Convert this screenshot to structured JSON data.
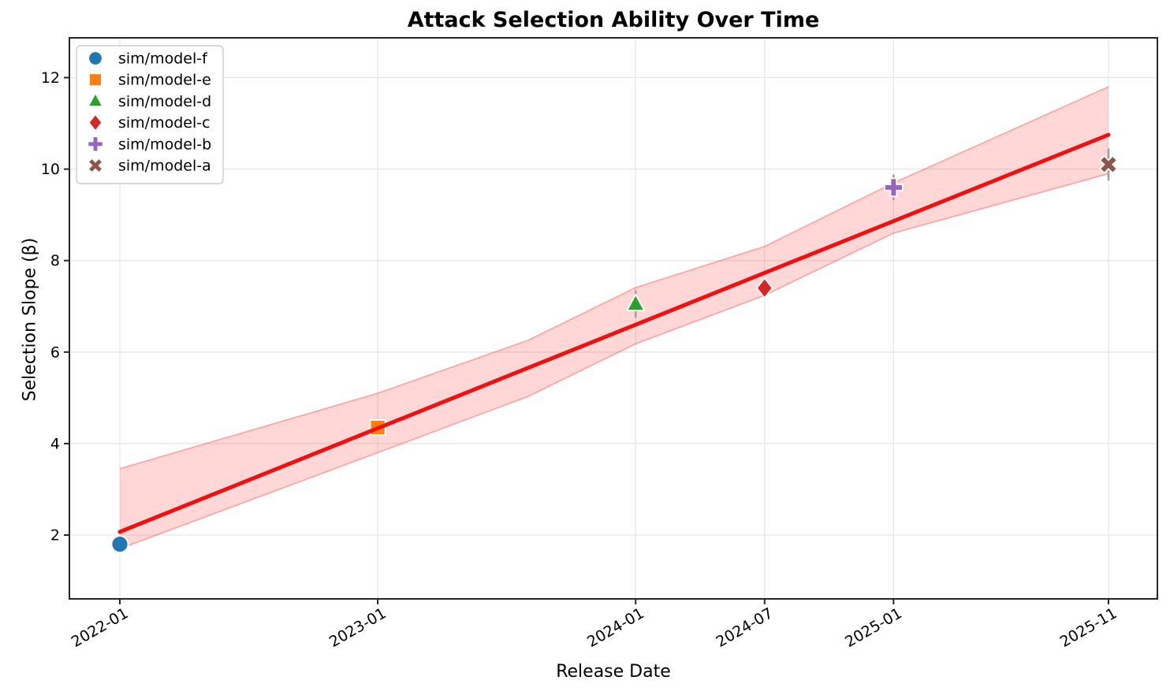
{
  "title": "Attack Selection Ability Over Time",
  "axes": {
    "x_label": "Release Date",
    "y_label": "Selection Slope (β)"
  },
  "chart_data": {
    "type": "scatter",
    "title": "Attack Selection Ability Over Time",
    "xlabel": "Release Date",
    "ylabel": "Selection Slope (β)",
    "x_tick_labels": [
      "2022-01",
      "2023-01",
      "2024-01",
      "2024-07",
      "2025-01",
      "2025-11"
    ],
    "y_tick_labels": [
      2,
      4,
      6,
      8,
      10,
      12
    ],
    "ylim": [
      0.6,
      12.9
    ],
    "xlim_dates": [
      "2021-11",
      "2026-01"
    ],
    "grid": true,
    "legend_position": "upper left",
    "series": [
      {
        "name": "sim/model-f",
        "marker": "circle",
        "color": "#1f77b4",
        "date": "2022-01",
        "value": 1.8,
        "err": 0.12
      },
      {
        "name": "sim/model-e",
        "marker": "square",
        "color": "#ff7f0e",
        "date": "2023-01",
        "value": 4.35,
        "err": 0.12
      },
      {
        "name": "sim/model-d",
        "marker": "triangle",
        "color": "#2ca02c",
        "date": "2024-01",
        "value": 7.05,
        "err": 0.3
      },
      {
        "name": "sim/model-c",
        "marker": "diamond",
        "color": "#d62728",
        "date": "2024-07",
        "value": 7.4,
        "err": 0.15
      },
      {
        "name": "sim/model-b",
        "marker": "plus",
        "color": "#9467bd",
        "date": "2025-01",
        "value": 9.6,
        "err": 0.28
      },
      {
        "name": "sim/model-a",
        "marker": "x",
        "color": "#8c564b",
        "date": "2025-11",
        "value": 10.1,
        "err": 0.35
      }
    ],
    "trendline": {
      "color": "#ee1111",
      "points": [
        {
          "date": "2022-01",
          "value": 2.07
        },
        {
          "date": "2025-11",
          "value": 10.75
        }
      ]
    },
    "confidence_band": {
      "fill": "rgba(255,40,40,0.19)",
      "edge": "rgba(255,70,70,0.45)",
      "points": [
        {
          "date": "2022-01",
          "lo": 1.7,
          "hi": 3.45
        },
        {
          "date": "2023-01",
          "lo": 3.8,
          "hi": 5.1
        },
        {
          "date": "2023-08",
          "lo": 5.03,
          "hi": 6.26
        },
        {
          "date": "2024-01",
          "lo": 6.18,
          "hi": 7.41
        },
        {
          "date": "2024-07",
          "lo": 7.24,
          "hi": 8.31
        },
        {
          "date": "2025-01",
          "lo": 8.6,
          "hi": 9.7
        },
        {
          "date": "2025-11",
          "lo": 9.9,
          "hi": 11.8
        }
      ]
    },
    "error_bar_color": "#a0a0a0",
    "grid_color": "#e6e6e6",
    "spine_color": "#262626"
  }
}
